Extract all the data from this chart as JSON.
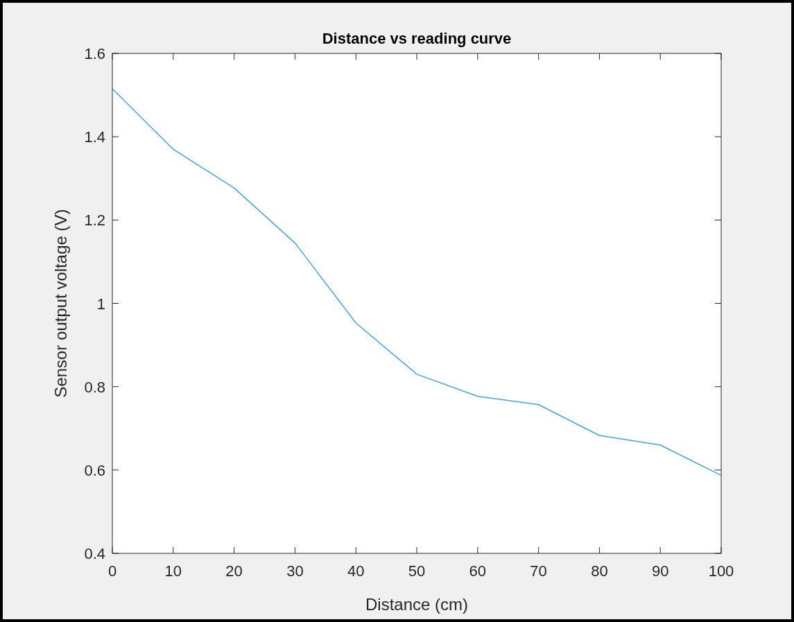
{
  "chart_data": {
    "type": "line",
    "title": "Distance vs reading curve",
    "xlabel": "Distance (cm)",
    "ylabel": "Sensor output voltage (V)",
    "x": [
      0,
      10,
      20,
      30,
      40,
      50,
      60,
      70,
      80,
      90,
      100
    ],
    "series": [
      {
        "color": "#4a9fd8",
        "values": [
          1.515,
          1.37,
          1.277,
          1.145,
          0.953,
          0.83,
          0.777,
          0.757,
          0.683,
          0.66,
          0.587
        ]
      }
    ],
    "xlim": [
      0,
      100
    ],
    "xticks": [
      0,
      10,
      20,
      30,
      40,
      50,
      60,
      70,
      80,
      90,
      100
    ],
    "ylim": [
      0.4,
      1.6
    ],
    "yticks": [
      0.4,
      0.6,
      0.8,
      1,
      1.2,
      1.4,
      1.6
    ],
    "grid": false,
    "marker": "none",
    "line_style": "solid"
  }
}
